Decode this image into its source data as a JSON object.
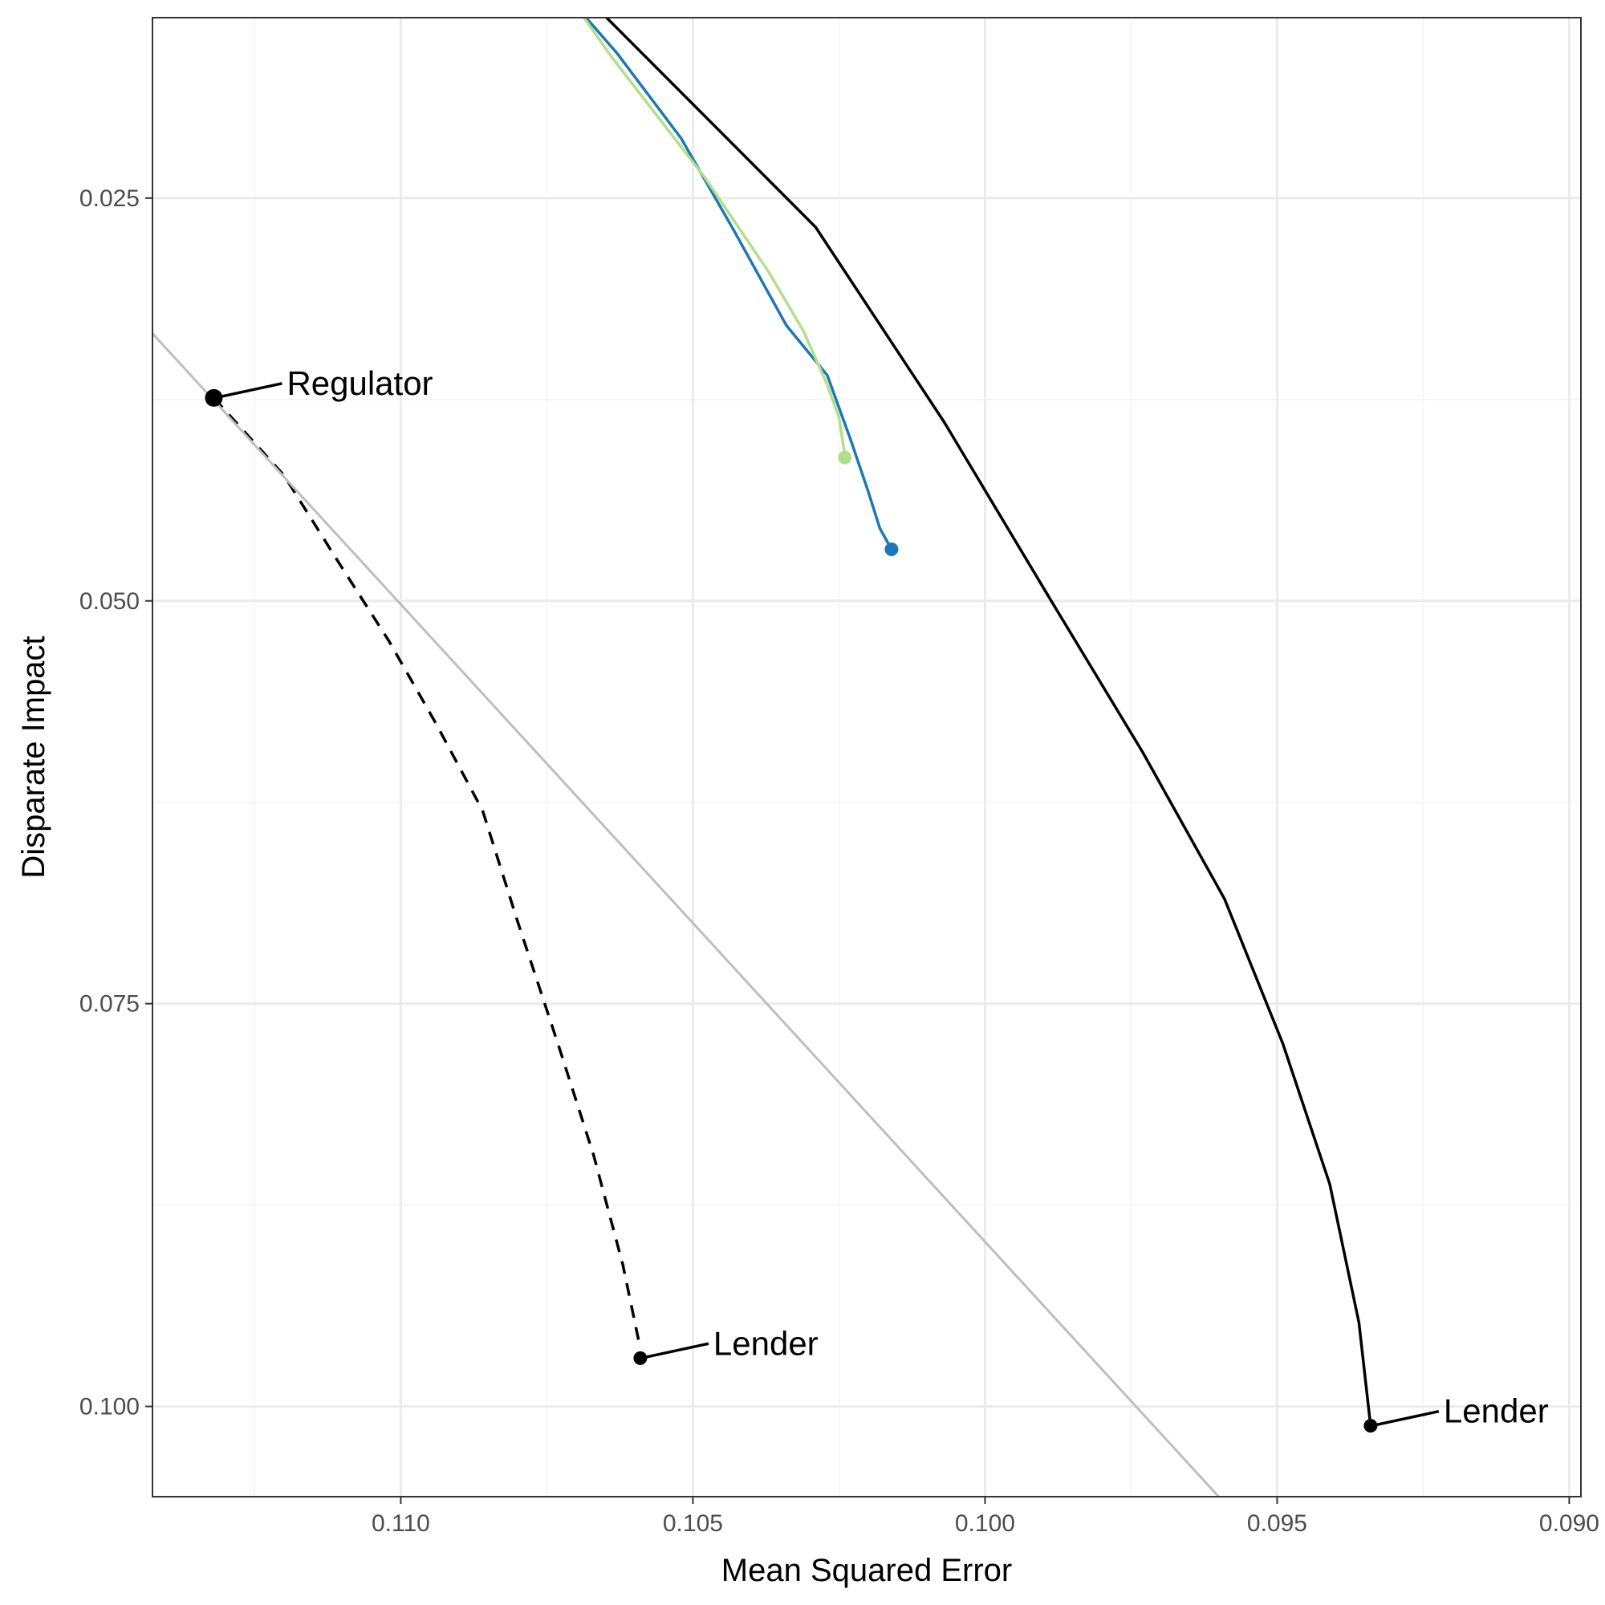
{
  "chart_data": {
    "type": "line",
    "title": "",
    "xlabel": "Mean Squared Error",
    "ylabel": "Disparate Impact",
    "x_reversed": true,
    "y_reversed": true,
    "xlim": [
      0.11425,
      0.0898
    ],
    "ylim": [
      0.0138,
      0.1056
    ],
    "x_ticks": [
      0.11,
      0.105,
      0.1,
      0.095,
      0.09
    ],
    "x_tick_labels": [
      "0.110",
      "0.105",
      "0.100",
      "0.095",
      "0.090"
    ],
    "y_ticks": [
      0.025,
      0.05,
      0.075,
      0.1
    ],
    "y_tick_labels": [
      "0.025",
      "0.050",
      "0.075",
      "0.100"
    ],
    "grid": true,
    "legend": "none",
    "colors": {
      "frontier": "#000000",
      "dashed_frontier": "#000000",
      "blue_series": "#1f78b4",
      "green_series": "#b2df8a",
      "reference_line": "#bebebe",
      "grid_major": "#ebebeb",
      "grid_minor": "#f3f3f3"
    },
    "series": [
      {
        "style": "solid",
        "color": "#000000",
        "x": [
          0.1078,
          0.1029,
          0.1007,
          0.0989,
          0.0973,
          0.0959,
          0.0949,
          0.0941,
          0.0936,
          0.0934
        ],
        "y": [
          0.009,
          0.0268,
          0.0389,
          0.0498,
          0.0594,
          0.0685,
          0.0775,
          0.0862,
          0.0948,
          0.1012
        ]
      },
      {
        "style": "solid",
        "color": "#1f78b4",
        "x": [
          0.1081,
          0.1063,
          0.1052,
          0.1043,
          0.1034,
          0.1027,
          0.1023,
          0.102,
          0.1018,
          0.1016
        ],
        "y": [
          0.0085,
          0.016,
          0.0213,
          0.027,
          0.0329,
          0.036,
          0.04,
          0.0432,
          0.0455,
          0.0468
        ]
      },
      {
        "style": "solid",
        "color": "#b2df8a",
        "x": [
          0.1082,
          0.1074,
          0.1064,
          0.1048,
          0.1037,
          0.1031,
          0.1027,
          0.1025,
          0.1024
        ],
        "y": [
          0.0085,
          0.011,
          0.0162,
          0.0237,
          0.0296,
          0.0333,
          0.0366,
          0.0386,
          0.0409
        ]
      },
      {
        "style": "dashed",
        "color": "#000000",
        "x": [
          0.1132,
          0.112,
          0.1111,
          0.1102,
          0.1094,
          0.1086,
          0.108,
          0.1073,
          0.1067,
          0.1062,
          0.1059
        ],
        "y": [
          0.0374,
          0.0422,
          0.0474,
          0.0525,
          0.0576,
          0.063,
          0.0699,
          0.0776,
          0.0844,
          0.0912,
          0.0964
        ]
      },
      {
        "style": "solid",
        "color": "#bebebe",
        "x": [
          0.11425,
          0.096
        ],
        "y": [
          0.0334,
          0.1056
        ]
      }
    ],
    "points": [
      {
        "x": 0.1078,
        "y": 0.009,
        "color": "#000000",
        "big": true
      },
      {
        "x": 0.0934,
        "y": 0.1012,
        "color": "#000000",
        "big": false
      },
      {
        "x": 0.1016,
        "y": 0.0468,
        "color": "#1f78b4",
        "big": false
      },
      {
        "x": 0.1024,
        "y": 0.0411,
        "color": "#b2df8a",
        "big": false
      },
      {
        "x": 0.1132,
        "y": 0.0374,
        "color": "#000000",
        "big": true
      },
      {
        "x": 0.1059,
        "y": 0.097,
        "color": "#000000",
        "big": false
      }
    ],
    "annotations": [
      {
        "text": "Regulator",
        "x": 0.1078,
        "y": 0.009
      },
      {
        "text": "Lender",
        "x": 0.0934,
        "y": 0.1012
      },
      {
        "text": "Regulator",
        "x": 0.1132,
        "y": 0.0374
      },
      {
        "text": "Lender",
        "x": 0.1059,
        "y": 0.097
      }
    ]
  }
}
